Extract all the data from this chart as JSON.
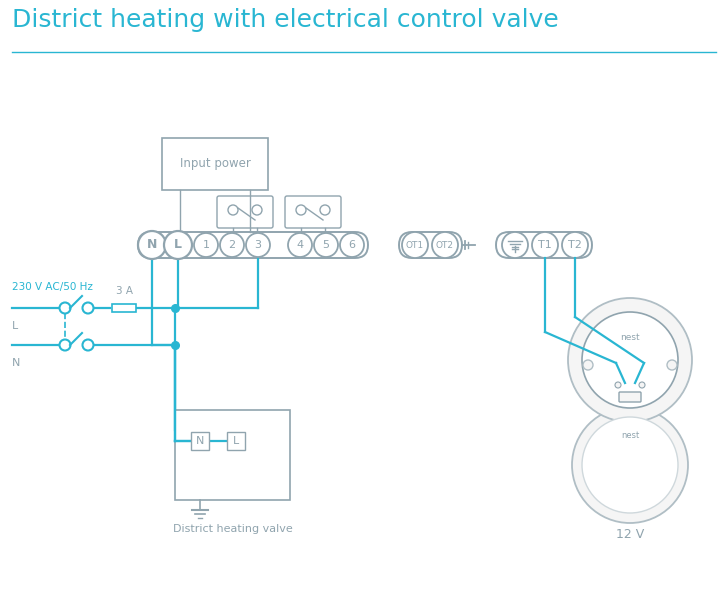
{
  "title": "District heating with electrical control valve",
  "title_color": "#29b6d2",
  "title_fontsize": 18,
  "line_color": "#29b6d2",
  "connector_color": "#90a4ae",
  "bg_color": "#ffffff",
  "label_230v": "230 V AC/50 Hz",
  "label_L": "L",
  "label_N": "N",
  "label_3A": "3 A",
  "label_valve": "District heating valve",
  "label_12v": "12 V",
  "label_nest": "nest",
  "label_input_power": "Input power"
}
